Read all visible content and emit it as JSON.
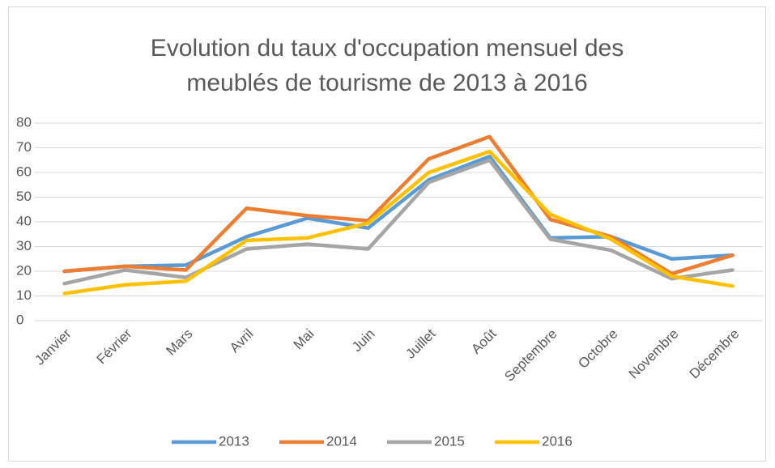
{
  "chart_data": {
    "type": "line",
    "title": "Evolution du taux d'occupation mensuel des meublés de tourisme de 2013 à 2016",
    "categories": [
      "Janvier",
      "Février",
      "Mars",
      "Avril",
      "Mai",
      "Juin",
      "Juillet",
      "Août",
      "Septembre",
      "Octobre",
      "Novembre",
      "Décembre"
    ],
    "series": [
      {
        "name": "2013",
        "color": "#5b9bd5",
        "values": [
          20,
          22,
          22.5,
          34,
          41.5,
          37.5,
          57,
          66.5,
          33.5,
          34,
          25,
          26.5
        ]
      },
      {
        "name": "2014",
        "color": "#ed7d31",
        "values": [
          20,
          22,
          20.5,
          45.5,
          42.5,
          40.5,
          65.5,
          74.5,
          41,
          34,
          19,
          26.5
        ]
      },
      {
        "name": "2015",
        "color": "#a5a5a5",
        "values": [
          15,
          20.5,
          17.5,
          29,
          31,
          29,
          56,
          65,
          33,
          28.5,
          17,
          20.5
        ]
      },
      {
        "name": "2016",
        "color": "#ffc000",
        "values": [
          11,
          14.5,
          16,
          32.5,
          33.5,
          39.5,
          60,
          68.5,
          43,
          33,
          18,
          14
        ]
      }
    ],
    "ylim": [
      0,
      80
    ],
    "yticks": [
      0,
      10,
      20,
      30,
      40,
      50,
      60,
      70,
      80
    ],
    "grid": true,
    "legend": "bottom"
  }
}
